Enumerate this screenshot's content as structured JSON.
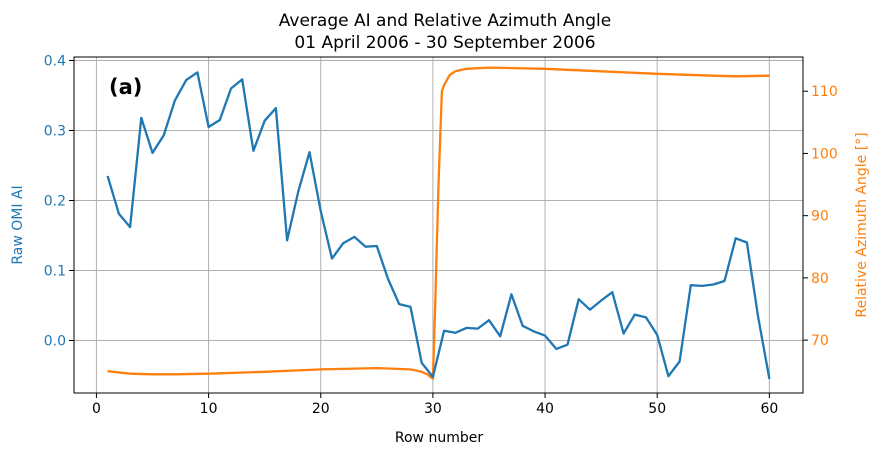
{
  "chart_data": {
    "type": "line",
    "title_line1": "Average AI and Relative Azimuth Angle",
    "title_line2": "01 April 2006 - 30 September 2006",
    "panel_label": "(a)",
    "xlabel": "Row number",
    "ylabel_left": "Raw OMI AI",
    "ylabel_right": "Relative Azimuth Angle [°]",
    "xlim": [
      -2,
      63
    ],
    "ylim_left": [
      -0.075,
      0.405
    ],
    "ylim_right": [
      61.5,
      115.5
    ],
    "x_ticks": [
      0,
      10,
      20,
      30,
      40,
      50,
      60
    ],
    "x_tick_labels": [
      "0",
      "10",
      "20",
      "30",
      "40",
      "50",
      "60"
    ],
    "y_left_ticks": [
      0.0,
      0.1,
      0.2,
      0.3,
      0.4
    ],
    "y_left_tick_labels": [
      "0.0",
      "0.1",
      "0.2",
      "0.3",
      "0.4"
    ],
    "y_right_ticks": [
      70,
      80,
      90,
      100,
      110
    ],
    "y_right_tick_labels": [
      "70",
      "80",
      "90",
      "100",
      "110"
    ],
    "grid": true,
    "colors": {
      "ai": "#1f77b4",
      "azimuth": "#ff7f0e",
      "axis": "#000000",
      "grid": "#b0b0b0"
    },
    "series": [
      {
        "axis": "left",
        "x": [
          1,
          2,
          3,
          4,
          5,
          6,
          7,
          8,
          9,
          10,
          11,
          12,
          13,
          14,
          15,
          16,
          17,
          18,
          19,
          20,
          21,
          22,
          23,
          24,
          25,
          26,
          27,
          28,
          29,
          30,
          31,
          32,
          33,
          34,
          35,
          36,
          37,
          38,
          39,
          40,
          41,
          42,
          43,
          44,
          45,
          46,
          47,
          48,
          49,
          50,
          51,
          52,
          53,
          54,
          55,
          56,
          57,
          58,
          59,
          60
        ],
        "values": [
          0.235,
          0.181,
          0.162,
          0.318,
          0.268,
          0.293,
          0.343,
          0.372,
          0.383,
          0.305,
          0.315,
          0.36,
          0.373,
          0.271,
          0.314,
          0.332,
          0.143,
          0.213,
          0.269,
          0.185,
          0.117,
          0.139,
          0.148,
          0.134,
          0.135,
          0.088,
          0.052,
          0.048,
          -0.032,
          -0.052,
          0.014,
          0.011,
          0.018,
          0.017,
          0.029,
          0.006,
          0.066,
          0.021,
          0.013,
          0.007,
          -0.012,
          -0.006,
          0.059,
          0.044,
          0.057,
          0.069,
          0.01,
          0.037,
          0.033,
          0.008,
          -0.051,
          -0.03,
          0.079,
          0.078,
          0.08,
          0.085,
          0.146,
          0.14,
          0.034,
          -0.055
        ]
      },
      {
        "axis": "right",
        "x": [
          1,
          3,
          5,
          7,
          10,
          15,
          20,
          25,
          28,
          29,
          29.5,
          30,
          30.2,
          30.5,
          30.8,
          31,
          31.5,
          32,
          33,
          35,
          40,
          45,
          50,
          55,
          57,
          60
        ],
        "values": [
          65.0,
          64.6,
          64.5,
          64.5,
          64.6,
          64.9,
          65.3,
          65.5,
          65.3,
          64.9,
          64.5,
          63.8,
          75.0,
          95.0,
          110.0,
          111.0,
          112.6,
          113.2,
          113.6,
          113.8,
          113.6,
          113.2,
          112.8,
          112.5,
          112.4,
          112.5
        ]
      }
    ]
  }
}
